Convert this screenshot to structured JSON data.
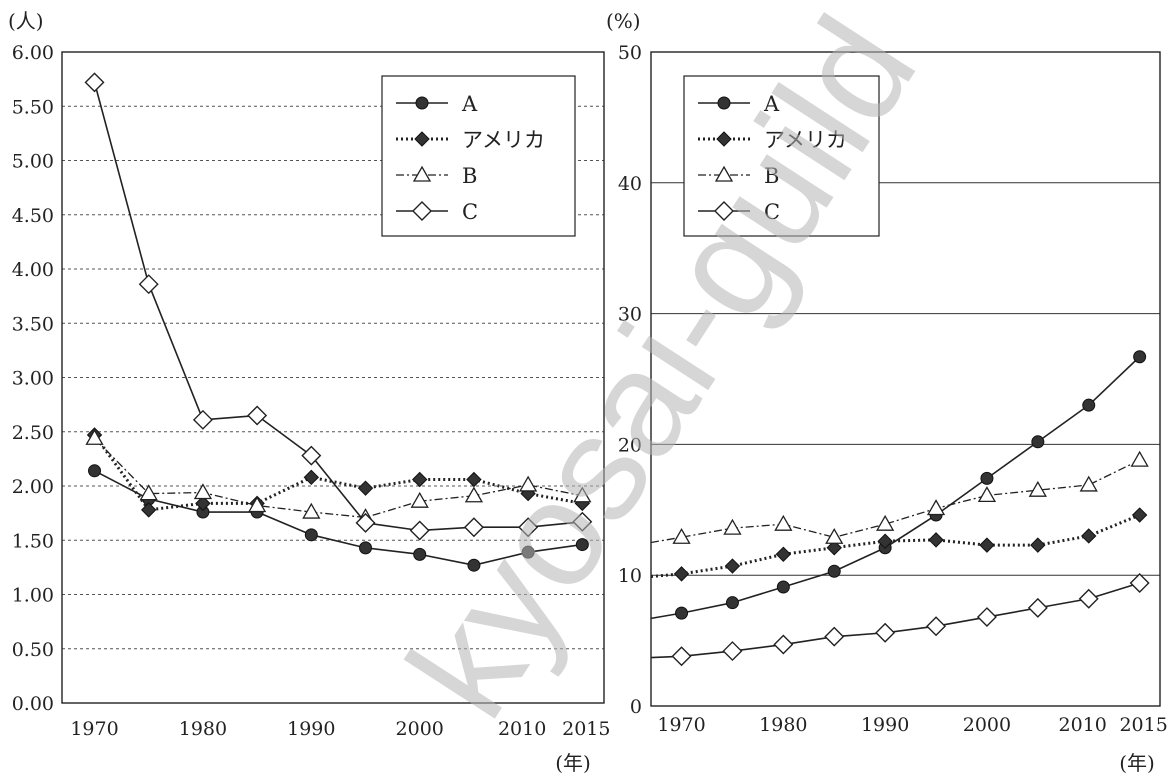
{
  "chart_data": [
    {
      "type": "line",
      "y_unit_label": "(人)",
      "x_unit_label": "(年)",
      "ylim": [
        0,
        6
      ],
      "y_ticks": [
        "0.00",
        "0.50",
        "1.00",
        "1.50",
        "2.00",
        "2.50",
        "3.00",
        "3.50",
        "4.00",
        "4.50",
        "5.00",
        "5.50",
        "6.00"
      ],
      "x_ticks": [
        "1970",
        "1980",
        "1990",
        "2000",
        "2010",
        "2015"
      ],
      "xlim": [
        1967,
        2017
      ],
      "grid": "horizontal dotted",
      "legend_position": "top-right",
      "x": [
        1970,
        1975,
        1980,
        1985,
        1990,
        1995,
        2000,
        2005,
        2010,
        2015
      ],
      "series": [
        {
          "name": "A",
          "style": "solid",
          "marker": "filled-circle",
          "values": [
            2.14,
            1.88,
            1.76,
            1.76,
            1.55,
            1.43,
            1.37,
            1.27,
            1.39,
            1.46
          ]
        },
        {
          "name": "アメリカ",
          "style": "dotted",
          "marker": "filled-diamond",
          "values": [
            2.47,
            1.78,
            1.84,
            1.84,
            2.08,
            1.98,
            2.06,
            2.06,
            1.93,
            1.84
          ]
        },
        {
          "name": "B",
          "style": "dashdot",
          "marker": "open-triangle",
          "values": [
            2.44,
            1.93,
            1.94,
            1.82,
            1.76,
            1.71,
            1.86,
            1.91,
            2.01,
            1.91
          ]
        },
        {
          "name": "C",
          "style": "solid",
          "marker": "open-diamond",
          "values": [
            5.72,
            3.86,
            2.61,
            2.65,
            2.28,
            1.66,
            1.59,
            1.62,
            1.62,
            1.67
          ]
        }
      ]
    },
    {
      "type": "line",
      "y_unit_label": "(%)",
      "x_unit_label": "(年)",
      "ylim": [
        0,
        50
      ],
      "y_ticks": [
        "0",
        "10",
        "20",
        "30",
        "40",
        "50"
      ],
      "x_ticks": [
        "1970",
        "1980",
        "1990",
        "2000",
        "2010",
        "2015"
      ],
      "xlim": [
        1967,
        2017
      ],
      "grid": "horizontal solid",
      "legend_position": "top-left",
      "x": [
        1970,
        1975,
        1980,
        1985,
        1990,
        1995,
        2000,
        2005,
        2010,
        2015
      ],
      "series": [
        {
          "name": "A",
          "style": "solid",
          "marker": "filled-circle",
          "values": [
            7.1,
            7.9,
            9.1,
            10.3,
            12.1,
            14.6,
            17.4,
            20.2,
            23.0,
            26.7
          ],
          "start_value": 6.7
        },
        {
          "name": "アメリカ",
          "style": "dotted",
          "marker": "filled-diamond",
          "values": [
            10.1,
            10.7,
            11.6,
            12.1,
            12.6,
            12.7,
            12.3,
            12.3,
            13.0,
            14.6
          ],
          "start_value": 9.9
        },
        {
          "name": "B",
          "style": "dashdot",
          "marker": "open-triangle",
          "values": [
            12.9,
            13.6,
            13.9,
            12.9,
            13.9,
            15.1,
            16.1,
            16.5,
            16.9,
            18.8
          ],
          "start_value": 12.5
        },
        {
          "name": "C",
          "style": "solid",
          "marker": "open-diamond",
          "values": [
            3.8,
            4.2,
            4.7,
            5.3,
            5.6,
            6.1,
            6.8,
            7.5,
            8.2,
            9.4
          ],
          "start_value": 3.7
        }
      ]
    }
  ],
  "watermark": "kyosai-guild"
}
